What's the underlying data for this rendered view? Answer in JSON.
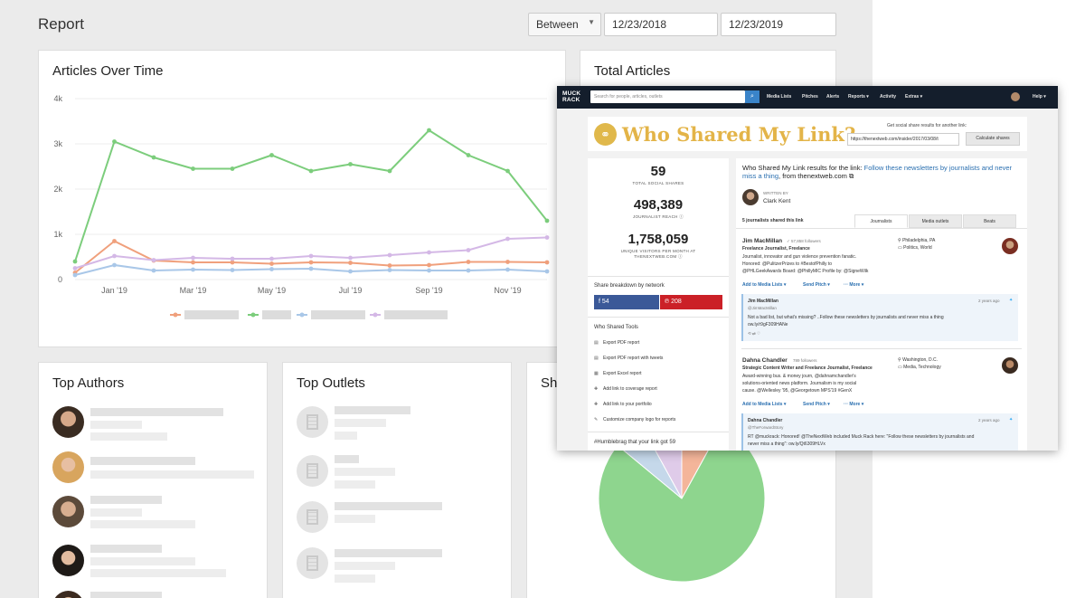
{
  "report": {
    "title": "Report",
    "range_mode": "Between",
    "start_date": "12/23/2018",
    "end_date": "12/23/2019"
  },
  "articles_over_time": {
    "title": "Articles Over Time",
    "chart_data": {
      "type": "line",
      "x": [
        "Dec '18",
        "Jan '19",
        "Feb '19",
        "Mar '19",
        "Apr '19",
        "May '19",
        "Jun '19",
        "Jul '19",
        "Aug '19",
        "Sep '19",
        "Oct '19",
        "Nov '19",
        "Dec '19"
      ],
      "x_tick_labels": [
        "Jan '19",
        "Mar '19",
        "May '19",
        "Jul '19",
        "Sep '19",
        "Nov '19"
      ],
      "y_tick_labels": [
        "0",
        "1k",
        "2k",
        "3k",
        "4k"
      ],
      "ylim": [
        0,
        4000
      ],
      "grid": true,
      "series": [
        {
          "color": "#f0a07c",
          "values": [
            150,
            850,
            420,
            380,
            380,
            350,
            380,
            370,
            310,
            320,
            390,
            390,
            380
          ]
        },
        {
          "color": "#7ccd7c",
          "values": [
            400,
            3050,
            2700,
            2450,
            2450,
            2750,
            2400,
            2550,
            2400,
            3300,
            2750,
            2400,
            1300
          ]
        },
        {
          "color": "#a9c7e8",
          "values": [
            100,
            320,
            200,
            220,
            210,
            230,
            240,
            180,
            210,
            200,
            200,
            220,
            180
          ]
        },
        {
          "color": "#d4b8e6",
          "values": [
            250,
            520,
            430,
            480,
            460,
            460,
            520,
            480,
            540,
            600,
            650,
            900,
            930
          ]
        }
      ]
    }
  },
  "total_articles": {
    "title": "Total Articles"
  },
  "top_authors": {
    "title": "Top Authors"
  },
  "top_outlets": {
    "title": "Top Outlets"
  },
  "share_card": {
    "title": "Sha",
    "chart_data": {
      "type": "pie",
      "slices": [
        {
          "color": "#8ed58e",
          "value": 78
        },
        {
          "color": "#c5d8ea",
          "value": 6
        },
        {
          "color": "#dfcbe9",
          "value": 8
        },
        {
          "color": "#f4b59a",
          "value": 8
        }
      ]
    }
  },
  "muckrack": {
    "logo_line1": "MUCK",
    "logo_line2": "RACK",
    "search_placeholder": "Search for people, articles, outlets",
    "nav": [
      "Media Lists",
      "Pitches",
      "Alerts",
      "Reports ▾",
      "Activity",
      "Extras ▾",
      "Help ▾"
    ],
    "page_title": "Who Shared My Link?",
    "get_results_label": "Get social share results for another link:",
    "url_value": "https://thenextweb.com/insider/2017/03/08/t",
    "calc_button": "Calculate shares",
    "stats": [
      {
        "value": "59",
        "label": "TOTAL SOCIAL SHARES"
      },
      {
        "value": "498,389",
        "label": "JOURNALIST REACH ⓘ"
      },
      {
        "value": "1,758,059",
        "label": "UNIQUE VISITORS PER MONTH AT THENEXTWEB.COM ⓘ"
      }
    ],
    "breakdown_label": "Share breakdown by network",
    "facebook_count": "54",
    "pinterest_count": "208",
    "tools_label": "Who Shared Tools",
    "tools": [
      "Export PDF report",
      "Export PDF report with tweets",
      "Export Excel report",
      "Add link to coverage report",
      "Add link to your portfolio",
      "Customize company logo for reports"
    ],
    "humblebrag": "#Humblebrag that your link got 59",
    "results_prefix": "Who Shared My Link results for the link: ",
    "results_link": "Follow these newsletters by journalists and never miss a thing",
    "results_suffix": ", from thenextweb.com ⧉",
    "written_by": "WRITTEN BY",
    "author": "Clark Kent",
    "journalists_count": "5 journalists shared this link",
    "tabs": [
      "Journalists",
      "Media outlets",
      "Beats"
    ],
    "people": [
      {
        "name": "Jim MacMillan",
        "followers": "✓ 57,858 followers",
        "title": "Freelance Journalist, Freelance",
        "bio1": "Journalist, innovator and gun violence prevention fanatic.",
        "bio2": "Honored: @PulitzerPrizes to #BestofPhilly to",
        "bio3": "@PHLGeekAwards Board: @PhillyMIC Profile by: @SigneWilk",
        "loc": "Philadelphia, PA",
        "beats": "Politics, World",
        "tw_name": "Jim MacMillan",
        "tw_handle": "@JimMacMillan",
        "tw_time": "2 years ago",
        "tw_text": "Not a bad list, but what's missing? ..Follow these newsletters by journalists and never miss a thing",
        "tw_link": "ow.ly/r9gF309HANe"
      },
      {
        "name": "Dahna Chandler",
        "followers": "789 followers",
        "title": "Strategic Content Writer and Freelance Journalist, Freelance",
        "bio1": "Award-winning bus. & money journ, @dahnamchandler's",
        "bio2": "solutions-oriented news platform. Journalism is my social",
        "bio3": "cause. @Wellesley '95, @Georgetown MPS'19 #GenX",
        "loc": "Washington, D.C.",
        "beats": "Media, Technology",
        "tw_name": "Dahna Chandler",
        "tw_handle": "@TheForwardStory",
        "tw_time": "2 years ago",
        "tw_text": "RT @muckrack: Honored! @TheNextWeb included Muck Rack here: \"Follow these newsletters by journalists and",
        "tw_text2": "never miss a thing\": ow.ly/Qt6309HLVx"
      }
    ],
    "add_to_lists": "Add to Media Lists ▾",
    "send_pitch": "Send Pitch ▾",
    "more": "··· More ▾"
  }
}
